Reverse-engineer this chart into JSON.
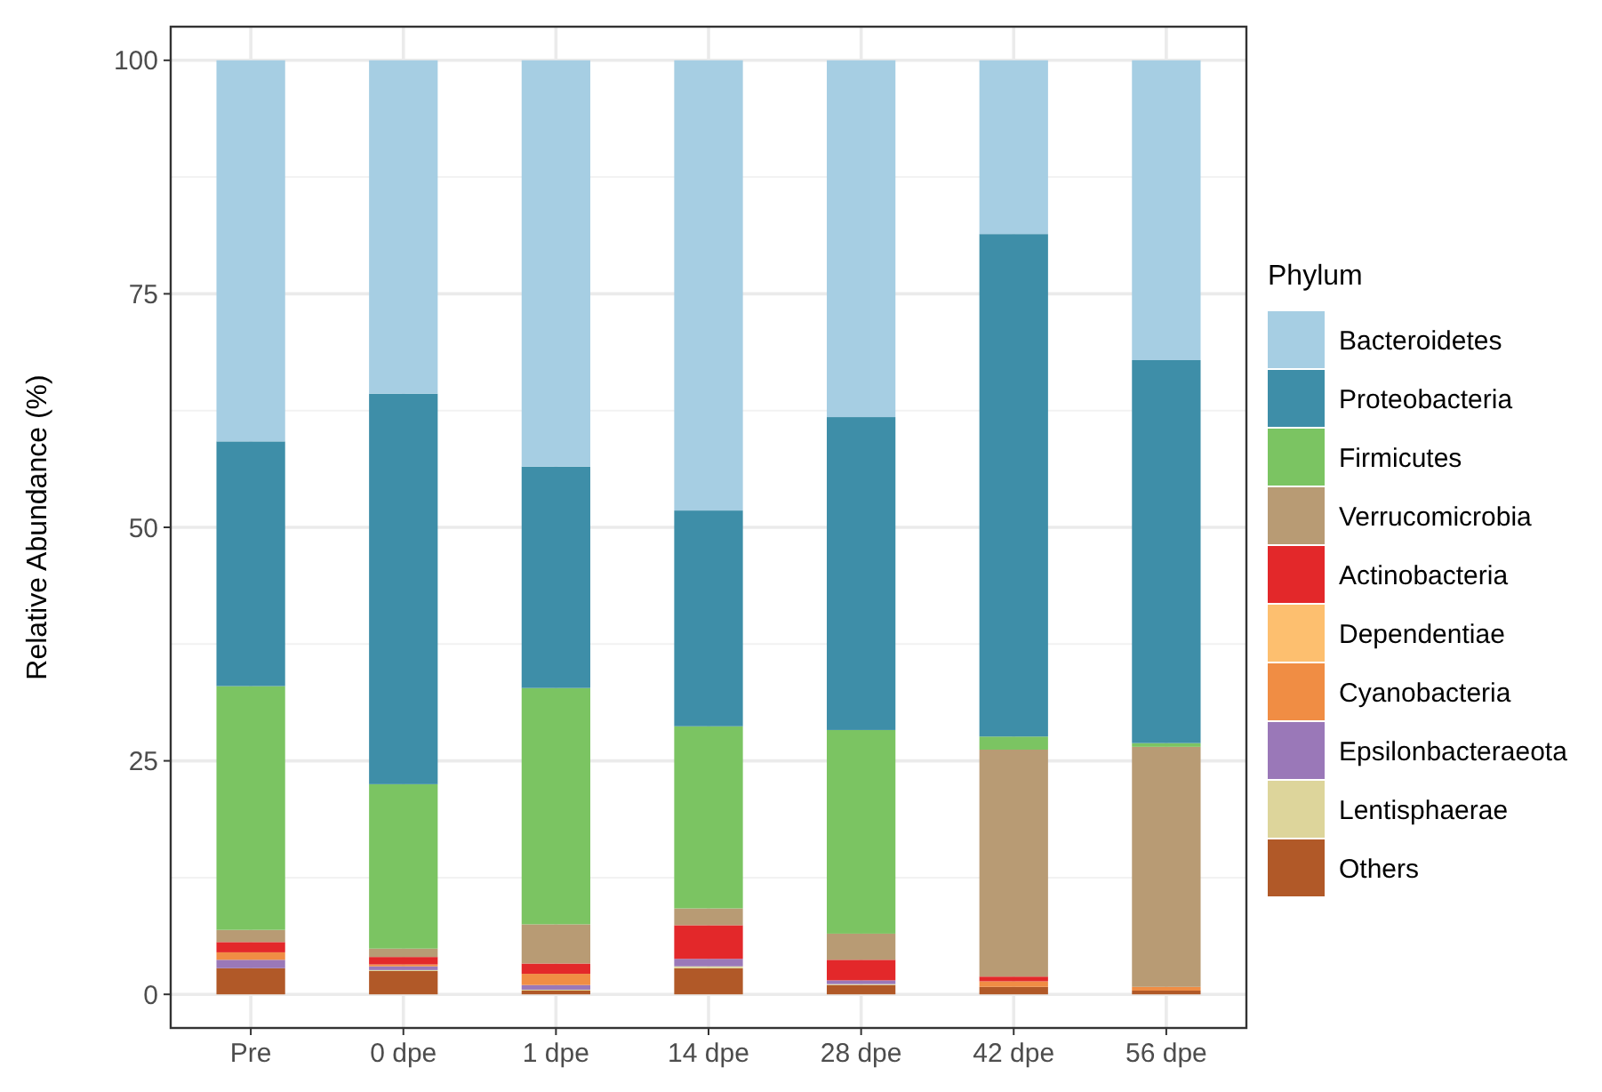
{
  "chart_data": {
    "type": "bar",
    "stacked": true,
    "ylabel": "Relative Abundance (%)",
    "legend_title": "Phylum",
    "legend": "right",
    "grid": true,
    "categories": [
      "Pre",
      "0 dpe",
      "1 dpe",
      "14 dpe",
      "28 dpe",
      "42 dpe",
      "56 dpe"
    ],
    "ylim": [
      -3.6,
      103.6
    ],
    "yticks": [
      0,
      25,
      50,
      75,
      100
    ],
    "series": [
      {
        "name": "Others",
        "color": "#b15928",
        "values": [
          2.8,
          2.5,
          0.4,
          2.8,
          1.0,
          0.8,
          0.4
        ]
      },
      {
        "name": "Lentisphaerae",
        "color": "#ddd59b",
        "values": [
          0,
          0.1,
          0.1,
          0.2,
          0.1,
          0,
          0
        ]
      },
      {
        "name": "Epsilonbacteraeota",
        "color": "#9a78b8",
        "values": [
          0.9,
          0.4,
          0.5,
          0.8,
          0.4,
          0,
          0
        ]
      },
      {
        "name": "Cyanobacteria",
        "color": "#f08d44",
        "values": [
          0.8,
          0.2,
          1.2,
          0,
          0,
          0.6,
          0.4
        ]
      },
      {
        "name": "Dependentiae",
        "color": "#fdbf6f",
        "values": [
          0,
          0,
          0,
          0,
          0,
          0,
          0
        ]
      },
      {
        "name": "Actinobacteria",
        "color": "#e3282a",
        "values": [
          1.1,
          0.8,
          1.1,
          3.6,
          2.2,
          0.5,
          0
        ]
      },
      {
        "name": "Verrucomicrobia",
        "color": "#b89b74",
        "values": [
          1.3,
          0.9,
          4.2,
          1.8,
          2.8,
          24.3,
          25.7
        ]
      },
      {
        "name": "Firmicutes",
        "color": "#7bc462",
        "values": [
          26.1,
          17.6,
          25.3,
          19.5,
          21.8,
          1.4,
          0.4
        ]
      },
      {
        "name": "Proteobacteria",
        "color": "#3e8ea8",
        "values": [
          26.2,
          41.8,
          23.7,
          23.1,
          33.5,
          53.8,
          41.0
        ]
      },
      {
        "name": "Bacteroidetes",
        "color": "#a6cee3",
        "values": [
          40.8,
          35.7,
          43.5,
          48.2,
          38.2,
          18.6,
          32.1
        ]
      }
    ]
  }
}
